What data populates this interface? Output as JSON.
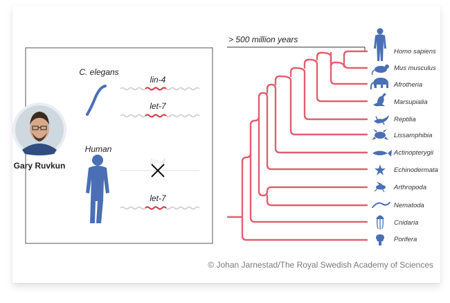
{
  "left_panel": {
    "person_name": "Gary Ruvkun",
    "organisms": [
      {
        "name": "C. elegans",
        "genes": [
          {
            "label": "lin-4",
            "present": true
          },
          {
            "label": "let-7",
            "present": true
          }
        ]
      },
      {
        "name": "Human",
        "genes": [
          {
            "label": "lin-4",
            "present": false
          },
          {
            "label": "let-7",
            "present": true
          }
        ]
      }
    ]
  },
  "tree": {
    "time_label": "> 500 million years",
    "taxa": [
      {
        "label": "Homo sapiens",
        "icon": "human-silhouette-icon"
      },
      {
        "label": "Mus musculus",
        "icon": "mouse-icon"
      },
      {
        "label": "Afrotheria",
        "icon": "elephant-icon"
      },
      {
        "label": "Marsupialia",
        "icon": "kangaroo-icon"
      },
      {
        "label": "Reptilia",
        "icon": "lizard-icon"
      },
      {
        "label": "Lissamphibia",
        "icon": "frog-icon"
      },
      {
        "label": "Actinopterygii",
        "icon": "fish-icon"
      },
      {
        "label": "Echinodermata",
        "icon": "starfish-icon"
      },
      {
        "label": "Arthropoda",
        "icon": "insect-icon"
      },
      {
        "label": "Nematoda",
        "icon": "worm-icon"
      },
      {
        "label": "Cnidaria",
        "icon": "jellyfish-icon"
      },
      {
        "label": "Porifera",
        "icon": "sponge-icon"
      }
    ]
  },
  "credit": "© Johan Jarnestad/The Royal Swedish Academy of Sciences",
  "colors": {
    "branch": "#e06070",
    "rna_red": "#d5424f",
    "rna_grey": "#d4d4d4",
    "silhouette": "#4a6fb4",
    "text": "#333333",
    "credit": "#7a7a7a"
  }
}
